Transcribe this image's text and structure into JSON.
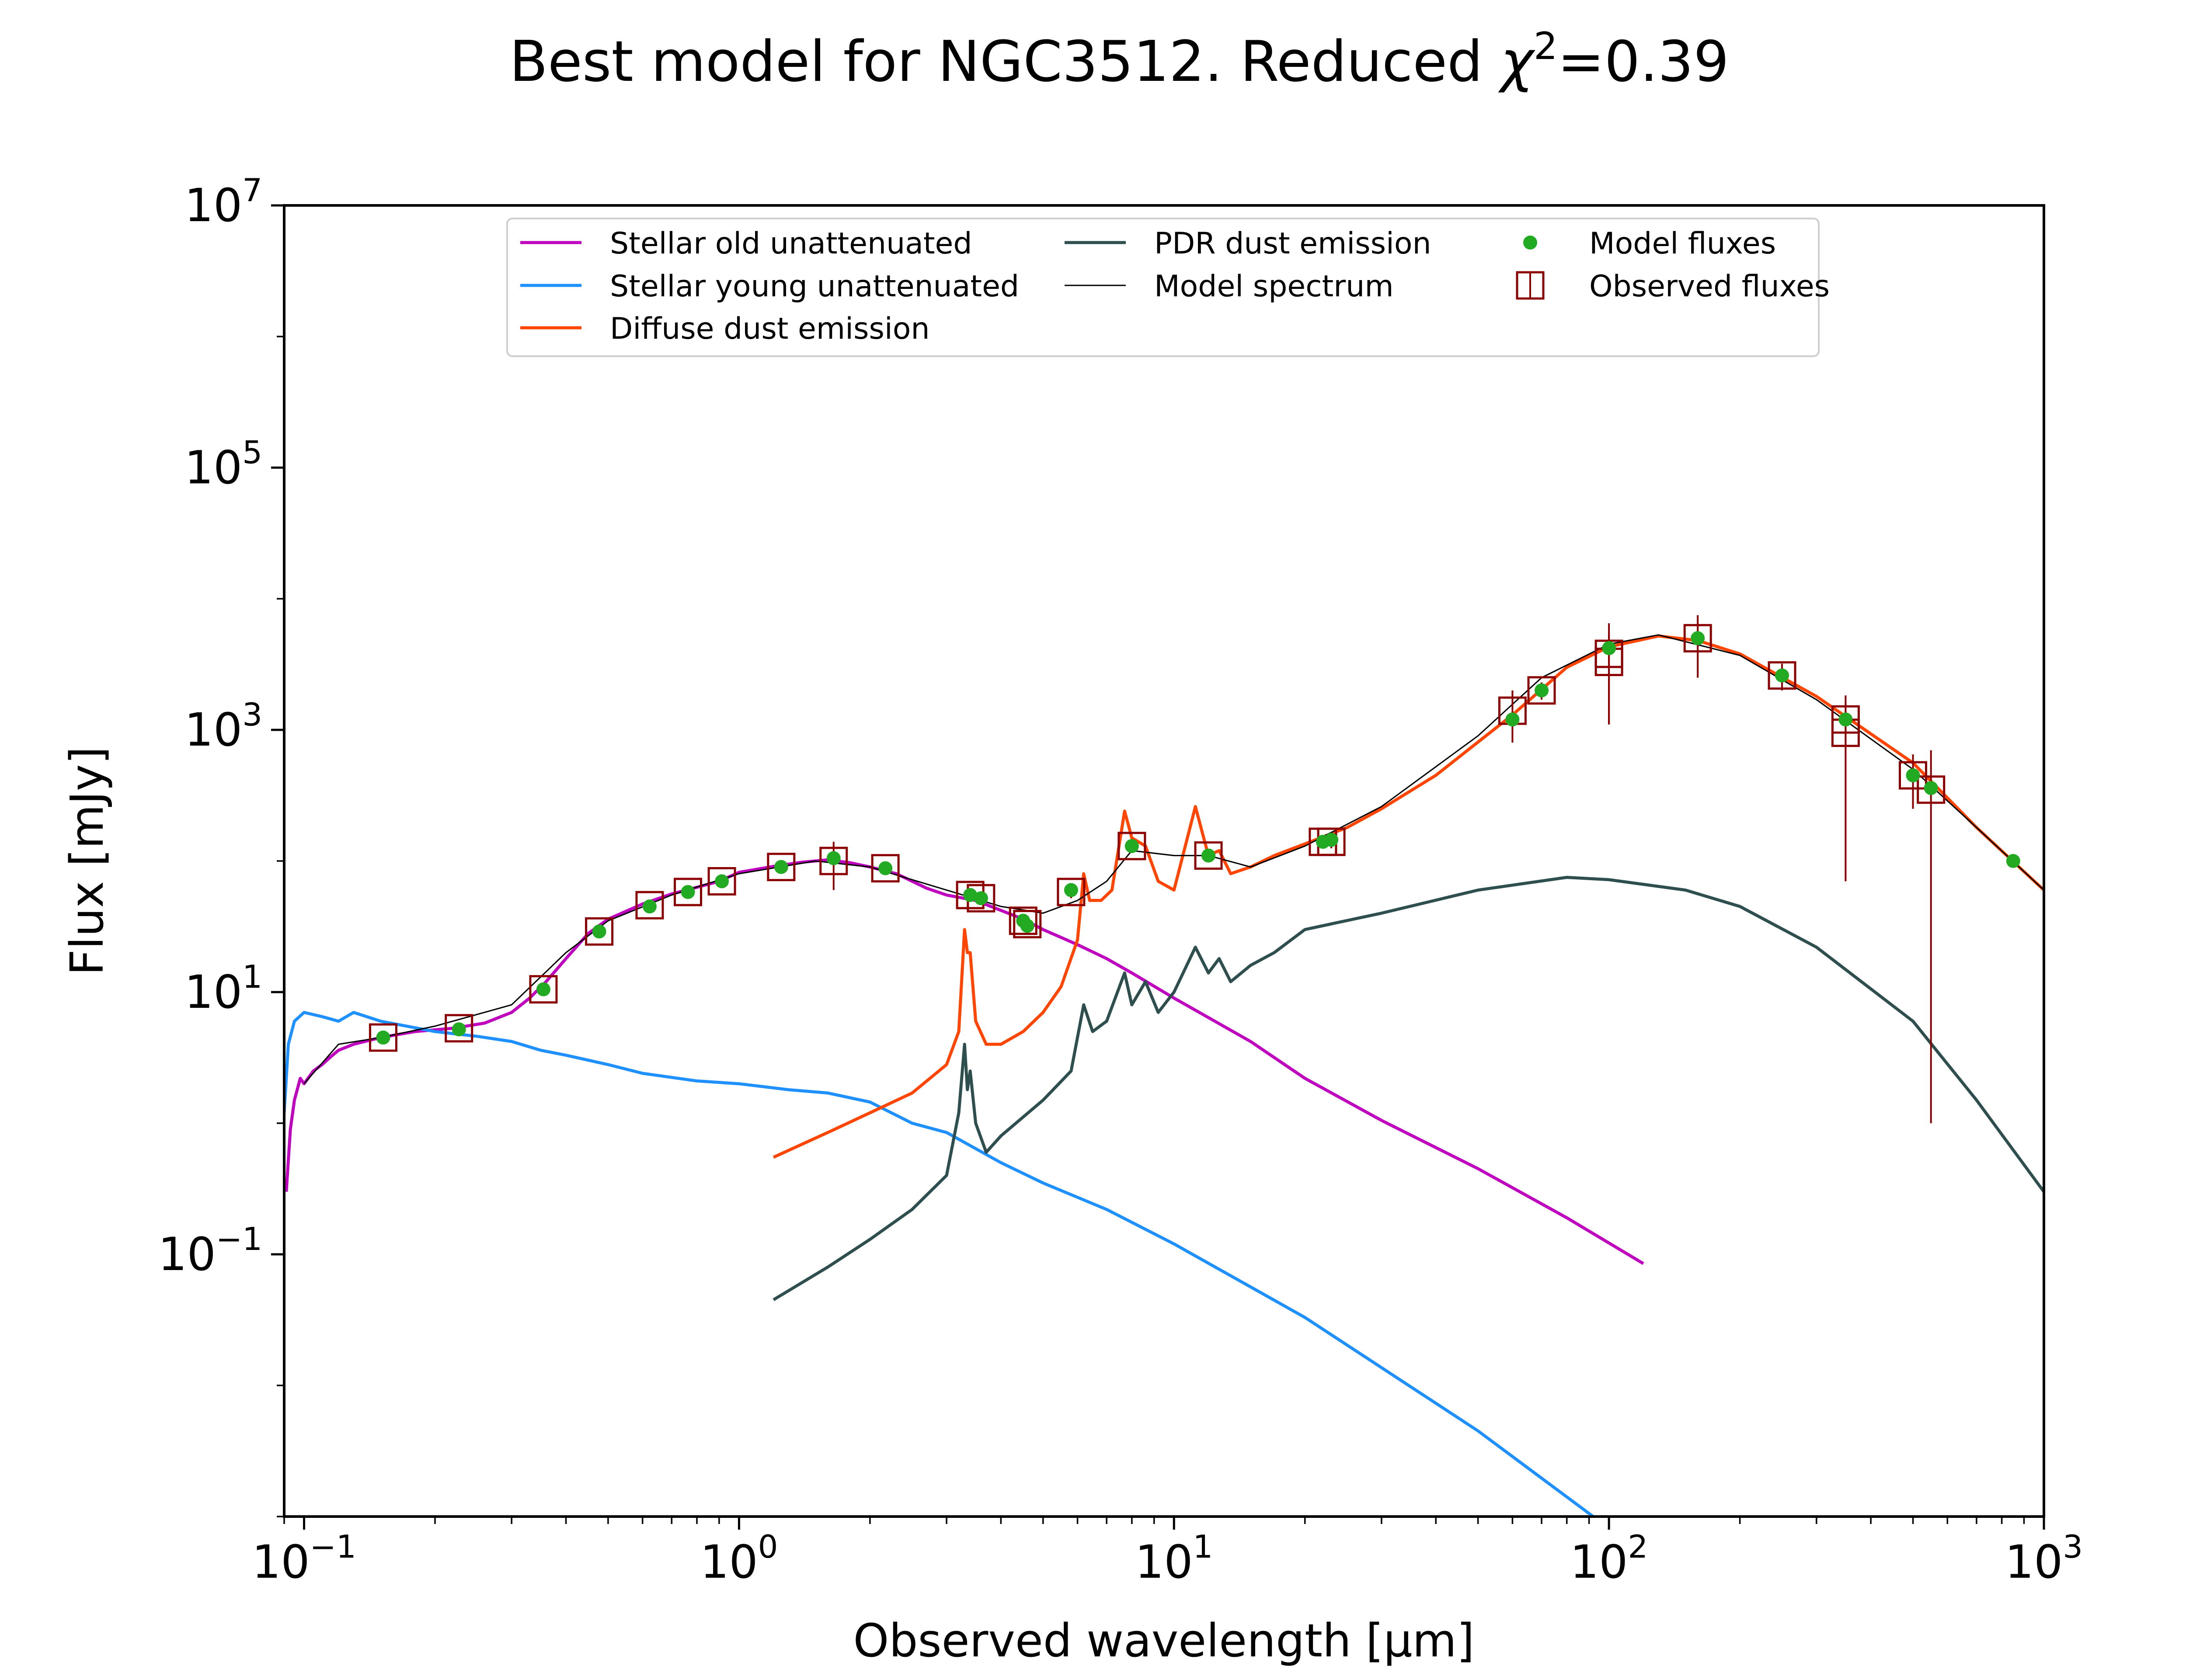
{
  "chart_data": {
    "type": "line",
    "title": "Best model for NGC3512. Reduced χ²=0.39",
    "title_parts": {
      "prefix": "Best model for NGC3512. Reduced ",
      "symbol": "χ",
      "exponent": "2",
      "suffix": "=0.39"
    },
    "xlabel": "Observed wavelength [μm]",
    "ylabel": "Flux [mJy]",
    "xscale": "log",
    "yscale": "log",
    "xlim": [
      0.09,
      1000
    ],
    "ylim": [
      0.001,
      10000000
    ],
    "xticks": [
      {
        "value": 0.1,
        "base": "10",
        "exp": "−1"
      },
      {
        "value": 1,
        "base": "10",
        "exp": "0"
      },
      {
        "value": 10,
        "base": "10",
        "exp": "1"
      },
      {
        "value": 100,
        "base": "10",
        "exp": "2"
      },
      {
        "value": 1000,
        "base": "10",
        "exp": "3"
      }
    ],
    "yticks": [
      {
        "value": 0.1,
        "base": "10",
        "exp": "−1"
      },
      {
        "value": 10,
        "base": "10",
        "exp": "1"
      },
      {
        "value": 1000,
        "base": "10",
        "exp": "3"
      },
      {
        "value": 100000,
        "base": "10",
        "exp": "5"
      },
      {
        "value": 10000000,
        "base": "10",
        "exp": "7"
      }
    ],
    "grid": false,
    "legend": {
      "placement": "top-center",
      "columns": [
        [
          "Stellar old unattenuated",
          "Stellar young unattenuated",
          "Diffuse dust emission"
        ],
        [
          "PDR dust emission",
          "Model spectrum"
        ],
        [
          "Model fluxes",
          "Observed fluxes"
        ]
      ]
    },
    "series": [
      {
        "name": "Stellar old unattenuated",
        "color": "#bf00bf",
        "points": [
          [
            0.091,
            0.3
          ],
          [
            0.093,
            0.9
          ],
          [
            0.095,
            1.5
          ],
          [
            0.098,
            2.2
          ],
          [
            0.1,
            2.0
          ],
          [
            0.105,
            2.5
          ],
          [
            0.11,
            2.8
          ],
          [
            0.115,
            3.2
          ],
          [
            0.12,
            3.6
          ],
          [
            0.13,
            4.0
          ],
          [
            0.15,
            4.5
          ],
          [
            0.18,
            5.0
          ],
          [
            0.22,
            5.3
          ],
          [
            0.26,
            5.8
          ],
          [
            0.3,
            7.0
          ],
          [
            0.33,
            9.0
          ],
          [
            0.36,
            12
          ],
          [
            0.4,
            18
          ],
          [
            0.45,
            28
          ],
          [
            0.5,
            36
          ],
          [
            0.6,
            47
          ],
          [
            0.7,
            56
          ],
          [
            0.8,
            63
          ],
          [
            0.9,
            70
          ],
          [
            1.0,
            82
          ],
          [
            1.2,
            91
          ],
          [
            1.4,
            98
          ],
          [
            1.6,
            102
          ],
          [
            1.8,
            97
          ],
          [
            2.0,
            90
          ],
          [
            2.3,
            80
          ],
          [
            2.7,
            62
          ],
          [
            3.0,
            55
          ],
          [
            3.5,
            50
          ],
          [
            4.0,
            42
          ],
          [
            4.5,
            36
          ],
          [
            5.0,
            30
          ],
          [
            6.0,
            23
          ],
          [
            7.0,
            18
          ],
          [
            8.0,
            14
          ],
          [
            10,
            9
          ],
          [
            15,
            4.2
          ],
          [
            20,
            2.2
          ],
          [
            30,
            1.05
          ],
          [
            50,
            0.45
          ],
          [
            80,
            0.19
          ],
          [
            120,
            0.085
          ]
        ]
      },
      {
        "name": "Stellar young unattenuated",
        "color": "#1e90ff",
        "points": [
          [
            0.09,
            1.2
          ],
          [
            0.092,
            4.0
          ],
          [
            0.095,
            6.0
          ],
          [
            0.1,
            7.0
          ],
          [
            0.11,
            6.5
          ],
          [
            0.12,
            6.0
          ],
          [
            0.13,
            7.0
          ],
          [
            0.15,
            6.0
          ],
          [
            0.2,
            5.0
          ],
          [
            0.25,
            4.6
          ],
          [
            0.3,
            4.2
          ],
          [
            0.35,
            3.6
          ],
          [
            0.4,
            3.3
          ],
          [
            0.5,
            2.8
          ],
          [
            0.6,
            2.4
          ],
          [
            0.8,
            2.1
          ],
          [
            1.0,
            2.0
          ],
          [
            1.3,
            1.8
          ],
          [
            1.6,
            1.7
          ],
          [
            2.0,
            1.45
          ],
          [
            2.5,
            1.0
          ],
          [
            3.0,
            0.85
          ],
          [
            4.0,
            0.5
          ],
          [
            5.0,
            0.35
          ],
          [
            7.0,
            0.22
          ],
          [
            10,
            0.12
          ],
          [
            20,
            0.033
          ],
          [
            50,
            0.0045
          ],
          [
            92,
            0.001
          ]
        ]
      },
      {
        "name": "Diffuse dust emission",
        "color": "#ff4500",
        "points": [
          [
            1.2,
            0.55
          ],
          [
            1.6,
            0.85
          ],
          [
            2.0,
            1.2
          ],
          [
            2.5,
            1.7
          ],
          [
            3.0,
            2.8
          ],
          [
            3.2,
            5.0
          ],
          [
            3.3,
            30
          ],
          [
            3.35,
            20
          ],
          [
            3.4,
            20
          ],
          [
            3.5,
            6
          ],
          [
            3.7,
            4
          ],
          [
            4.0,
            4
          ],
          [
            4.5,
            5
          ],
          [
            5.0,
            7
          ],
          [
            5.5,
            11
          ],
          [
            6.0,
            25
          ],
          [
            6.2,
            80
          ],
          [
            6.4,
            50
          ],
          [
            6.8,
            50
          ],
          [
            7.2,
            60
          ],
          [
            7.7,
            240
          ],
          [
            8.0,
            150
          ],
          [
            8.6,
            130
          ],
          [
            9.2,
            70
          ],
          [
            10,
            60
          ],
          [
            11.2,
            260
          ],
          [
            12,
            110
          ],
          [
            12.7,
            120
          ],
          [
            13.5,
            80
          ],
          [
            15,
            90
          ],
          [
            17,
            110
          ],
          [
            20,
            135
          ],
          [
            25,
            180
          ],
          [
            30,
            250
          ],
          [
            40,
            450
          ],
          [
            60,
            1300
          ],
          [
            80,
            3000
          ],
          [
            100,
            4300
          ],
          [
            130,
            5200
          ],
          [
            160,
            4800
          ],
          [
            200,
            3800
          ],
          [
            300,
            1800
          ],
          [
            500,
            560
          ],
          [
            700,
            180
          ],
          [
            1000,
            60
          ]
        ]
      },
      {
        "name": "PDR dust emission",
        "color": "#2f4f4f",
        "points": [
          [
            1.2,
            0.045
          ],
          [
            1.6,
            0.08
          ],
          [
            2.0,
            0.13
          ],
          [
            2.5,
            0.22
          ],
          [
            3.0,
            0.4
          ],
          [
            3.2,
            1.2
          ],
          [
            3.3,
            4.0
          ],
          [
            3.35,
            1.8
          ],
          [
            3.4,
            2.5
          ],
          [
            3.5,
            1.0
          ],
          [
            3.7,
            0.6
          ],
          [
            4.0,
            0.8
          ],
          [
            5.0,
            1.5
          ],
          [
            5.8,
            2.5
          ],
          [
            6.2,
            8
          ],
          [
            6.5,
            5
          ],
          [
            7.0,
            6
          ],
          [
            7.7,
            14
          ],
          [
            8.0,
            8
          ],
          [
            8.6,
            12
          ],
          [
            9.2,
            7
          ],
          [
            10,
            10
          ],
          [
            11.2,
            22
          ],
          [
            12,
            14
          ],
          [
            12.7,
            18
          ],
          [
            13.5,
            12
          ],
          [
            15,
            16
          ],
          [
            17,
            20
          ],
          [
            20,
            30
          ],
          [
            30,
            40
          ],
          [
            50,
            60
          ],
          [
            80,
            75
          ],
          [
            100,
            72
          ],
          [
            150,
            60
          ],
          [
            200,
            45
          ],
          [
            300,
            22
          ],
          [
            500,
            6
          ],
          [
            700,
            1.5
          ],
          [
            1000,
            0.3
          ]
        ]
      },
      {
        "name": "Model spectrum",
        "color": "#000000",
        "points": [
          [
            0.1,
            2.0
          ],
          [
            0.12,
            4.0
          ],
          [
            0.15,
            4.5
          ],
          [
            0.2,
            5.5
          ],
          [
            0.3,
            8
          ],
          [
            0.4,
            20
          ],
          [
            0.5,
            35
          ],
          [
            0.7,
            55
          ],
          [
            1.0,
            80
          ],
          [
            1.5,
            100
          ],
          [
            2.0,
            90
          ],
          [
            3.0,
            60
          ],
          [
            4.0,
            45
          ],
          [
            5.0,
            40
          ],
          [
            6.0,
            50
          ],
          [
            7.0,
            70
          ],
          [
            8.0,
            120
          ],
          [
            10,
            110
          ],
          [
            12,
            110
          ],
          [
            15,
            90
          ],
          [
            20,
            130
          ],
          [
            30,
            260
          ],
          [
            50,
            900
          ],
          [
            70,
            2500
          ],
          [
            100,
            4500
          ],
          [
            130,
            5300
          ],
          [
            200,
            3700
          ],
          [
            300,
            1700
          ],
          [
            500,
            500
          ],
          [
            700,
            180
          ],
          [
            1000,
            60
          ]
        ]
      }
    ],
    "model_fluxes": {
      "name": "Model fluxes",
      "color": "#22aa22",
      "points": [
        [
          0.152,
          4.5
        ],
        [
          0.227,
          5.2
        ],
        [
          0.355,
          10.5
        ],
        [
          0.477,
          29
        ],
        [
          0.623,
          45
        ],
        [
          0.763,
          58
        ],
        [
          0.913,
          70
        ],
        [
          1.25,
          90
        ],
        [
          1.65,
          105
        ],
        [
          2.17,
          88
        ],
        [
          3.4,
          55
        ],
        [
          3.6,
          52
        ],
        [
          4.5,
          35
        ],
        [
          4.6,
          32
        ],
        [
          5.8,
          60
        ],
        [
          8.0,
          130
        ],
        [
          12,
          110
        ],
        [
          22,
          140
        ],
        [
          23,
          145
        ],
        [
          60,
          1200
        ],
        [
          70,
          2000
        ],
        [
          100,
          4200
        ],
        [
          160,
          5000
        ],
        [
          250,
          2600
        ],
        [
          350,
          1200
        ],
        [
          500,
          450
        ],
        [
          550,
          360
        ],
        [
          850,
          100
        ]
      ]
    },
    "observed_fluxes": {
      "name": "Observed fluxes",
      "color": "#8b0000",
      "points": [
        [
          0.152,
          4.5,
          0.5
        ],
        [
          0.227,
          5.3,
          0.5
        ],
        [
          0.355,
          10.5,
          1.0
        ],
        [
          0.477,
          29,
          3
        ],
        [
          0.623,
          46,
          4
        ],
        [
          0.763,
          58,
          5
        ],
        [
          0.913,
          70,
          6
        ],
        [
          1.25,
          90,
          8
        ],
        [
          1.65,
          100,
          40
        ],
        [
          2.17,
          88,
          8
        ],
        [
          3.4,
          55,
          5
        ],
        [
          3.6,
          52,
          5
        ],
        [
          4.5,
          35,
          4
        ],
        [
          4.6,
          33,
          4
        ],
        [
          5.8,
          58,
          6
        ],
        [
          8.0,
          130,
          15
        ],
        [
          12,
          110,
          12
        ],
        [
          22,
          140,
          15
        ],
        [
          23,
          140,
          15
        ],
        [
          60,
          1400,
          600
        ],
        [
          70,
          2000,
          300
        ],
        [
          100,
          3800,
          2700
        ],
        [
          100,
          3300,
          2200
        ],
        [
          160,
          5000,
          2500
        ],
        [
          250,
          2600,
          600
        ],
        [
          350,
          1200,
          400
        ],
        [
          350,
          950,
          880
        ],
        [
          500,
          450,
          200
        ],
        [
          550,
          350,
          349
        ]
      ]
    }
  }
}
